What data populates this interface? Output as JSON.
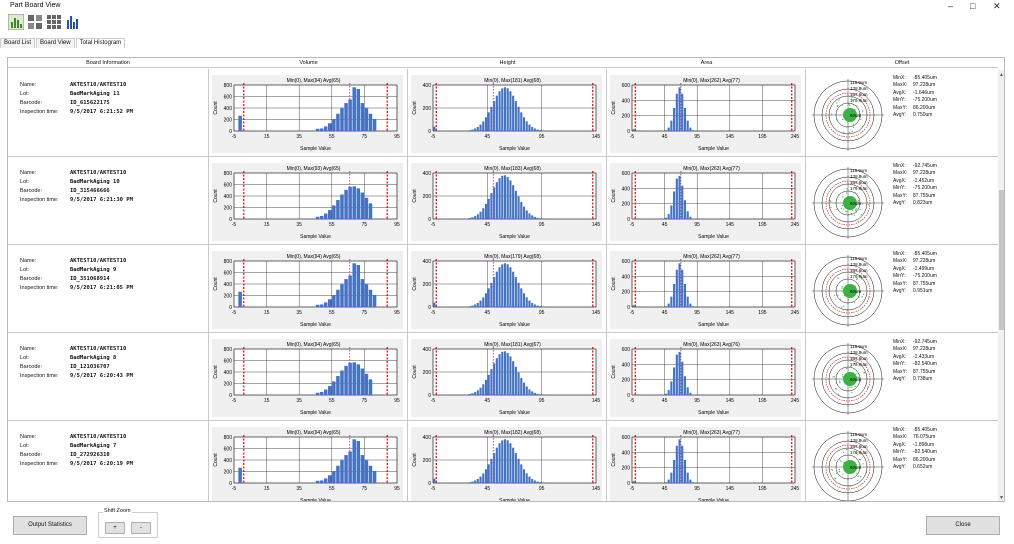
{
  "window": {
    "title": "Part Board View",
    "minimize": "–",
    "maximize": "□",
    "close": "✕"
  },
  "toolbar": {
    "icons": [
      "histogram-view-icon",
      "grid-view-large-icon",
      "grid-view-small-icon",
      "bar-chart-icon"
    ]
  },
  "tabs": [
    {
      "label": "Board List",
      "active": false
    },
    {
      "label": "Board View",
      "active": false
    },
    {
      "label": "Total Histogram",
      "active": true
    }
  ],
  "columns": {
    "info": "Board Information",
    "volume": "Volume",
    "height": "Height",
    "area": "Area",
    "offset": "Offset"
  },
  "labels": {
    "name": "Name:",
    "lot": "Lot:",
    "barcode": "Barcode:",
    "time": "Inspection time:",
    "sample_value": "Sample Value",
    "count": "Count"
  },
  "offset_labels": [
    "MinX:",
    "MaxX:",
    "AvgX:",
    "MinY:",
    "MaxY:",
    "AvgY:"
  ],
  "ring_labels": [
    "118.9um",
    "139.8um",
    "167.6um",
    "179.0um",
    "60um"
  ],
  "axes": {
    "volume": {
      "xticks": [
        "-5",
        "15",
        "35",
        "55",
        "75",
        "95"
      ],
      "yticks": [
        "800",
        "600",
        "400",
        "200",
        "0"
      ]
    },
    "height": {
      "xticks": [
        "-5",
        "45",
        "95",
        "145"
      ],
      "yticks": [
        "400",
        "200",
        "0"
      ]
    },
    "area": {
      "xticks": [
        "-5",
        "45",
        "95",
        "145",
        "195",
        "245"
      ],
      "yticks": [
        "600",
        "400",
        "200",
        "0"
      ]
    }
  },
  "boards": [
    {
      "name": "AKTEST10/AKTEST10",
      "lot": "BadMarkAging 11",
      "barcode": "ID_615622175",
      "time": "9/5/2017 6:21:52 PM",
      "volume": "Min(0), Max(94) Avg(65)",
      "height": "Min(0), Max(181) Avg(68)",
      "area": "Min(0), Max(262) Avg(77)",
      "offset": [
        "-85.405um",
        "97.228um",
        "-1.646um",
        "-75.200um",
        "86.200um",
        "0.750um"
      ]
    },
    {
      "name": "AKTEST10/AKTEST10",
      "lot": "BadMarkAging 10",
      "barcode": "ID_315466666",
      "time": "9/5/2017 6:21:30 PM",
      "volume": "Min(0), Max(93) Avg(65)",
      "height": "Min(0), Max(183) Avg(68)",
      "area": "Min(0), Max(263) Avg(77)",
      "offset": [
        "-92.745um",
        "97.228um",
        "-1.452um",
        "-75.200um",
        "87.755um",
        "0.823um"
      ]
    },
    {
      "name": "AKTEST10/AKTEST10",
      "lot": "BadMarkAging 9",
      "barcode": "ID_351068914",
      "time": "9/5/2017 6:21:05 PM",
      "volume": "Min(0), Max(94) Avg(65)",
      "height": "Min(0), Max(179) Avg(68)",
      "area": "Min(0), Max(262) Avg(77)",
      "offset": [
        "-85.405um",
        "97.228um",
        "-1.499um",
        "-75.200um",
        "87.755um",
        "0.951um"
      ]
    },
    {
      "name": "AKTEST10/AKTEST10",
      "lot": "BadMarkAging 8",
      "barcode": "ID_121036707",
      "time": "9/5/2017 6:20:43 PM",
      "volume": "Min(0), Max(94) Avg(65)",
      "height": "Min(0), Max(181) Avg(67)",
      "area": "Min(0), Max(263) Avg(76)",
      "offset": [
        "-92.745um",
        "97.228um",
        "-1.433um",
        "-82.540um",
        "87.755um",
        "0.738um"
      ]
    },
    {
      "name": "AKTEST10/AKTEST10",
      "lot": "BadMarkAging 7",
      "barcode": "ID_272926310",
      "time": "9/5/2017 6:20:19 PM",
      "volume": "Min(0), Max(94) Avg(65)",
      "height": "Min(0), Max(182) Avg(68)",
      "area": "Min(0), Max(263) Avg(77)",
      "offset": [
        "-85.405um",
        "76.075um",
        "-1.898um",
        "-82.540um",
        "86.200um",
        "0.652um"
      ]
    }
  ],
  "bottom": {
    "output_label": "Output Statistics",
    "shift_zoom": "Shift Zoom",
    "plus": "+",
    "minus": "-",
    "close": "Close"
  },
  "colors": {
    "bar": "#4472c4",
    "limit": "#e00000",
    "avg": "#9b59b6",
    "scatter": "#3cb043"
  }
}
